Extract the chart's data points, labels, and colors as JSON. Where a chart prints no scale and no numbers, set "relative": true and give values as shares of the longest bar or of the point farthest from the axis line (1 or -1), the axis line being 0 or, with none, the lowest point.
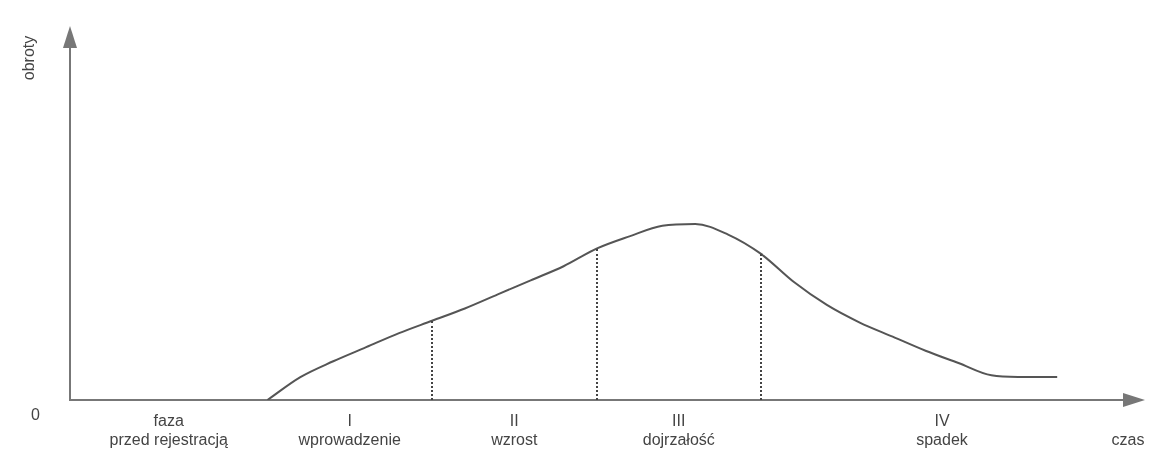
{
  "chart_data": {
    "type": "line",
    "relative": true,
    "xlabel": "czas",
    "color": "#555555",
    "grid": false,
    "legend": false,
    "tick_labels": false,
    "categories": [
      null,
      null,
      null,
      null,
      null,
      null,
      null,
      null,
      null,
      null,
      null,
      null,
      null,
      null,
      null,
      null,
      null,
      null,
      null,
      null,
      null,
      null,
      null,
      null,
      null,
      null,
      null,
      null,
      null,
      null,
      null,
      null,
      null
    ],
    "values": [
      null,
      null,
      null,
      null,
      null,
      null,
      0,
      0.13,
      0.22,
      0.3,
      0.38,
      0.45,
      0.52,
      0.6,
      0.68,
      0.76,
      0.86,
      0.93,
      0.99,
      1,
      0.94,
      0.83,
      0.67,
      0.54,
      0.44,
      0.36,
      0.28,
      0.21,
      0.14,
      0.13,
      0.13,
      null,
      null
    ],
    "annotations": [
      "faza\nprzed rejestracją",
      "I\nwprowadzenie",
      "II\nwzrost",
      "III\ndojrzałość",
      "IV\nspadek",
      "0",
      "obroty"
    ]
  }
}
